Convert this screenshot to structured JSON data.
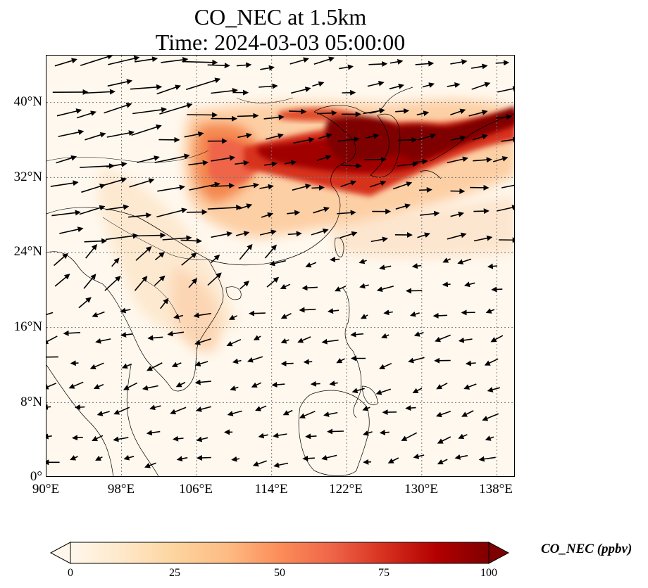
{
  "title": {
    "line1": "CO_NEC at 1.5km",
    "line2": "Time: 2024-03-03 05:00:00"
  },
  "map": {
    "lon_range": [
      90,
      140
    ],
    "lat_range": [
      0,
      45
    ],
    "lon_ticks": [
      "90°E",
      "98°E",
      "106°E",
      "114°E",
      "122°E",
      "130°E",
      "138°E"
    ],
    "lat_ticks": [
      "0°",
      "8°N",
      "16°N",
      "24°N",
      "32°N",
      "40°N"
    ],
    "gridlines": "dotted",
    "field": "CO_NEC",
    "vectors": "wind arrows",
    "high_concentration_region": "Northeast China / Korea / Sea of Japan plume along ~35-39°N"
  },
  "colorbar": {
    "label": "CO_NEC (ppbv)",
    "ticks": [
      "0",
      "25",
      "50",
      "75",
      "100"
    ],
    "min": 0,
    "max": 100,
    "colormap": "OrRd",
    "colors": [
      "#fff7ec",
      "#fee8c8",
      "#fdd49e",
      "#fdbb84",
      "#fc8d59",
      "#ef6548",
      "#d7301f",
      "#b30000",
      "#7f0000"
    ],
    "extend": "both"
  }
}
